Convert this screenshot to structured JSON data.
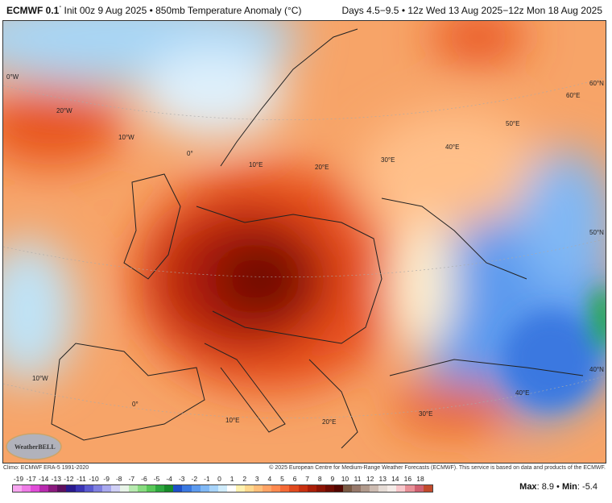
{
  "header": {
    "model": "ECMWF 0.1",
    "degree": "°",
    "title_rest": " Init 00z 9 Aug 2025 • 850mb Temperature Anomaly (°C)",
    "period": "Days 4.5−9.5 • 12z Wed 13 Aug 2025−12z Mon 18 Aug 2025"
  },
  "map": {
    "logo_text": "WeatherBELL",
    "grid_labels": [
      "0°W",
      "20°W",
      "10°W",
      "0°",
      "10°E",
      "20°E",
      "30°E",
      "40°E",
      "50°E",
      "60°E",
      "60°N",
      "50°N",
      "40°N",
      "40°E",
      "30°E",
      "20°E",
      "10°E",
      "0°",
      "10°W"
    ],
    "anomaly_colors": {
      "warm_max": "#5a0a00",
      "warm": "#e8501a",
      "mild": "#f7a060",
      "cool": "#bfe3f7",
      "cold": "#3d7ee0",
      "very_cold": "#27a850"
    }
  },
  "footer": {
    "climo": "Climo: ECMWF ERA-5 1991-2020",
    "copyright": "© 2025 European Centre for Medium-Range Weather Forecasts (ECMWF). This service is based on data and products of the ECMWF.",
    "colorbar_ticks": [
      "-19",
      "-17",
      "-14",
      "-13",
      "-12",
      "-11",
      "-10",
      "-9",
      "-8",
      "-7",
      "-6",
      "-5",
      "-4",
      "-3",
      "-2",
      "-1",
      "0",
      "1",
      "2",
      "3",
      "4",
      "5",
      "6",
      "7",
      "8",
      "9",
      "10",
      "11",
      "12",
      "13",
      "14",
      "16",
      "18"
    ],
    "colorbar_colors": [
      "#f7a6f0",
      "#ee7ce6",
      "#e04cd8",
      "#b82aae",
      "#8a1a7e",
      "#5e1060",
      "#2a1a8e",
      "#3a34b4",
      "#5a5ad0",
      "#8080e0",
      "#a8a8ee",
      "#cfcff5",
      "#e8f4e8",
      "#b8eab0",
      "#88dc80",
      "#58c858",
      "#2ea83e",
      "#188a2a",
      "#1e50c8",
      "#3a78e0",
      "#5c9aee",
      "#80b8f5",
      "#a8d4fa",
      "#d0ecfc",
      "#ffffff",
      "#fff2b0",
      "#ffd98e",
      "#ffbf7a",
      "#ffa466",
      "#ff8a50",
      "#f56a36",
      "#e04a1e",
      "#c83010",
      "#aa1e08",
      "#8c1404",
      "#6e0c02",
      "#520600",
      "#7a5a44",
      "#96786a",
      "#b09a8c",
      "#cdbcb2",
      "#e6dcd6",
      "#f5ece8",
      "#f8c8cc",
      "#e89098",
      "#d06070",
      "#c24a2c"
    ],
    "max_label": "Max",
    "max_value": "8.9",
    "min_label": "Min",
    "min_value": "-5.4"
  }
}
